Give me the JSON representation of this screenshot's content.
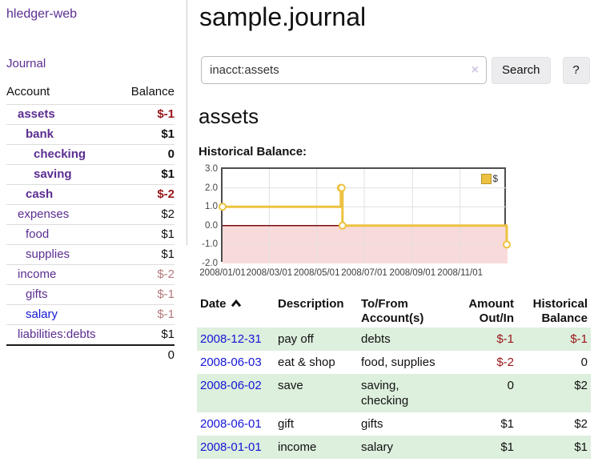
{
  "colors": {
    "accent_purple": "#5b2d91",
    "link_blue": "#1515d6",
    "negative_red": "#991417",
    "negative_soft_red": "#b5787c",
    "row_green": "#ddefdd",
    "chart_series_yellow": "#edc240",
    "chart_negative_fill": "#f9dada",
    "chart_zero_line": "#7a0c0c"
  },
  "sidebar": {
    "brand": "hledger-web",
    "nav_journal": "Journal",
    "table_headers": {
      "account": "Account",
      "balance": "Balance"
    },
    "accounts": [
      {
        "name": "assets",
        "balance": "$-1",
        "level": 1,
        "bold": true,
        "balance_style": "neg-strong"
      },
      {
        "name": "bank",
        "balance": "$1",
        "level": 2,
        "bold": true,
        "balance_style": "pos"
      },
      {
        "name": "checking",
        "balance": "0",
        "level": 3,
        "bold": true,
        "balance_style": "pos"
      },
      {
        "name": "saving",
        "balance": "$1",
        "level": 3,
        "bold": true,
        "balance_style": "pos"
      },
      {
        "name": "cash",
        "balance": "$-2",
        "level": 2,
        "bold": true,
        "balance_style": "neg-strong"
      },
      {
        "name": "expenses",
        "balance": "$2",
        "level": 1,
        "bold": false,
        "balance_style": "pos"
      },
      {
        "name": "food",
        "balance": "$1",
        "level": 2,
        "bold": false,
        "balance_style": "pos"
      },
      {
        "name": "supplies",
        "balance": "$1",
        "level": 2,
        "bold": false,
        "balance_style": "pos"
      },
      {
        "name": "income",
        "balance": "$-2",
        "level": 1,
        "bold": false,
        "balance_style": "neg-soft"
      },
      {
        "name": "gifts",
        "balance": "$-1",
        "level": 2,
        "bold": false,
        "balance_style": "neg-soft"
      },
      {
        "name": "salary",
        "balance": "$-1",
        "level": 2,
        "bold": false,
        "balance_style": "neg-soft",
        "link_style": "unvisited"
      },
      {
        "name": "liabilities:debts",
        "balance": "$1",
        "level": 1,
        "bold": false,
        "balance_style": "pos"
      }
    ],
    "total": "0"
  },
  "header": {
    "title": "sample.journal"
  },
  "search": {
    "value": "inacct:assets",
    "clear_icon": "×",
    "button_label": "Search",
    "help_label": "?"
  },
  "account_page": {
    "heading": "assets",
    "chart_title": "Historical Balance:"
  },
  "chart_data": {
    "type": "line",
    "step": true,
    "title": "Historical Balance:",
    "series": [
      {
        "name": "$",
        "points": [
          [
            "2008-01-01",
            1
          ],
          [
            "2008-06-01",
            2
          ],
          [
            "2008-06-02",
            2
          ],
          [
            "2008-06-03",
            0
          ],
          [
            "2008-12-31",
            -1
          ]
        ]
      }
    ],
    "xrange": [
      "2008-01-01",
      "2009-01-01"
    ],
    "ylim": [
      -2,
      3
    ],
    "ytick_values": [
      3,
      2,
      1,
      0,
      -1,
      -2
    ],
    "ytick_labels": [
      "3.0",
      "2.0",
      "1.0",
      "0.0",
      "-1.0",
      "-2.0"
    ],
    "xtick_dates": [
      "2008-01-01",
      "2008-03-01",
      "2008-05-01",
      "2008-07-01",
      "2008-09-01",
      "2008-11-01"
    ],
    "xtick_labels": [
      "2008/01/01",
      "2008/03/01",
      "2008/05/01",
      "2008/07/01",
      "2008/09/01",
      "2008/11/01"
    ],
    "legend": {
      "label": "$",
      "position": "top-right"
    },
    "grid": true,
    "negative_region_shaded": true
  },
  "register": {
    "columns": [
      {
        "label": "Date",
        "align": "left",
        "sorted": "asc"
      },
      {
        "label": "Description",
        "align": "left"
      },
      {
        "label": "To/From Account(s)",
        "align": "left"
      },
      {
        "label": "Amount Out/In",
        "align": "right"
      },
      {
        "label": "Historical Balance",
        "align": "right"
      }
    ],
    "rows": [
      {
        "date": "2008-12-31",
        "description": "pay off",
        "accounts": "debts",
        "amount": "$-1",
        "balance": "$-1",
        "amount_neg": true,
        "balance_neg": true
      },
      {
        "date": "2008-06-03",
        "description": "eat & shop",
        "accounts": "food, supplies",
        "amount": "$-2",
        "balance": "0",
        "amount_neg": true,
        "balance_neg": false
      },
      {
        "date": "2008-06-02",
        "description": "save",
        "accounts": "saving, checking",
        "amount": "0",
        "balance": "$2",
        "amount_neg": false,
        "balance_neg": false
      },
      {
        "date": "2008-06-01",
        "description": "gift",
        "accounts": "gifts",
        "amount": "$1",
        "balance": "$2",
        "amount_neg": false,
        "balance_neg": false
      },
      {
        "date": "2008-01-01",
        "description": "income",
        "accounts": "salary",
        "amount": "$1",
        "balance": "$1",
        "amount_neg": false,
        "balance_neg": false
      }
    ]
  }
}
